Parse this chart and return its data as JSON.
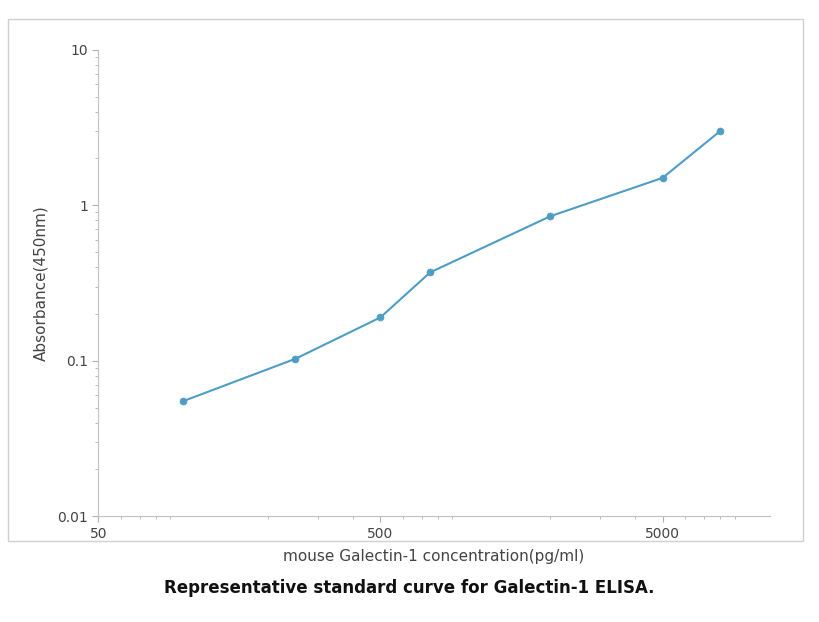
{
  "x_values": [
    100,
    250,
    500,
    750,
    2000,
    5000,
    8000
  ],
  "y_values": [
    0.055,
    0.103,
    0.19,
    0.37,
    0.85,
    1.5,
    3.0
  ],
  "line_color": "#4e9dc4",
  "marker_color": "#4e9dc4",
  "marker_size": 5,
  "line_width": 1.5,
  "xlim": [
    50,
    12000
  ],
  "ylim": [
    0.01,
    10
  ],
  "xlabel": "mouse Galectin-1 concentration(pg/ml)",
  "ylabel": "Absorbance(450nm)",
  "xlabel_fontsize": 11,
  "ylabel_fontsize": 11,
  "tick_label_fontsize": 10,
  "caption": "Representative standard curve for Galectin-1 ELISA.",
  "caption_fontsize": 12,
  "background_color": "#ffffff",
  "spine_color": "#c0c0c0",
  "xticks": [
    50,
    500,
    5000
  ],
  "yticks": [
    0.01,
    0.1,
    1,
    10
  ],
  "figure_border_color": "#d0d0d0"
}
